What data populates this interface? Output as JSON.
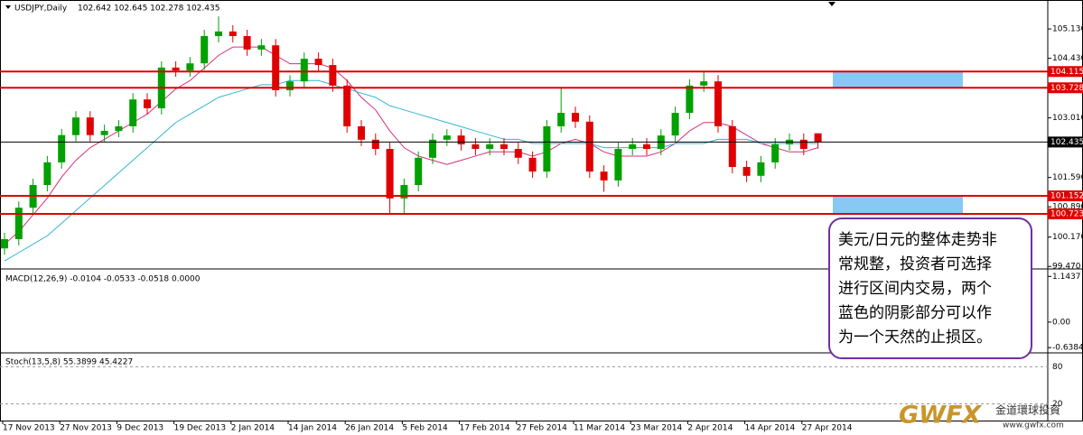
{
  "chart_data": {
    "type": "candlestick",
    "title": "USDJPY,Daily",
    "header_values": "102.642 102.645 102.278 102.435",
    "x_labels": [
      "17 Nov 2013",
      "27 Nov 2013",
      "9 Dec 2013",
      "19 Dec 2013",
      "2 Jan 2014",
      "14 Jan 2014",
      "26 Jan 2014",
      "5 Feb 2014",
      "17 Feb 2014",
      "27 Feb 2014",
      "11 Mar 2014",
      "23 Mar 2014",
      "2 Apr 2014",
      "14 Apr 2014",
      "27 Apr 2014"
    ],
    "open": [
      99.9,
      100.12,
      100.87,
      101.41,
      101.95,
      102.6,
      103.02,
      102.6,
      102.7,
      102.81,
      103.45,
      103.24,
      104.21,
      104.14,
      104.31,
      104.96,
      105.07,
      104.96,
      104.64,
      104.74,
      103.67,
      103.88,
      104.42,
      104.27,
      103.78,
      102.81,
      102.49,
      102.27,
      101.09,
      101.41,
      102.06,
      102.49,
      102.59,
      102.38,
      102.27,
      102.38,
      102.27,
      102.06,
      101.73,
      102.81,
      103.13,
      102.92,
      101.73,
      101.52,
      102.27,
      102.38,
      102.27,
      102.59,
      103.13,
      103.78,
      103.88,
      102.81,
      101.84,
      101.63,
      101.95,
      102.38,
      102.49,
      102.642
    ],
    "high": [
      100.27,
      101.02,
      101.56,
      102.1,
      102.75,
      103.17,
      103.17,
      102.85,
      102.96,
      103.6,
      103.6,
      104.36,
      104.36,
      104.46,
      105.11,
      105.43,
      105.22,
      105.11,
      104.89,
      104.89,
      104.03,
      104.57,
      104.57,
      104.42,
      103.93,
      102.96,
      102.64,
      102.42,
      101.56,
      102.21,
      102.64,
      102.74,
      102.74,
      102.53,
      102.53,
      102.53,
      102.42,
      102.21,
      102.96,
      103.73,
      103.28,
      103.07,
      101.88,
      102.42,
      102.53,
      102.53,
      102.74,
      103.28,
      103.93,
      104.11,
      104.03,
      102.96,
      101.99,
      102.1,
      102.53,
      102.64,
      102.64,
      102.645
    ],
    "low": [
      99.75,
      99.97,
      100.72,
      101.26,
      101.8,
      102.45,
      102.45,
      102.45,
      102.55,
      102.66,
      103.09,
      103.09,
      103.99,
      103.99,
      104.16,
      104.81,
      104.81,
      104.49,
      104.49,
      103.52,
      103.52,
      103.73,
      104.12,
      103.63,
      102.66,
      102.34,
      102.12,
      100.72,
      100.72,
      101.26,
      101.91,
      102.34,
      102.23,
      102.12,
      102.12,
      102.12,
      101.91,
      101.58,
      101.58,
      102.66,
      102.77,
      101.58,
      101.25,
      101.37,
      102.12,
      102.12,
      102.12,
      102.44,
      102.98,
      103.63,
      102.66,
      101.69,
      101.48,
      101.48,
      101.8,
      102.23,
      102.12,
      102.278
    ],
    "close": [
      100.12,
      100.87,
      101.41,
      101.95,
      102.6,
      103.02,
      102.6,
      102.7,
      102.81,
      103.45,
      103.24,
      104.21,
      104.14,
      104.31,
      104.96,
      105.07,
      104.96,
      104.64,
      104.74,
      103.67,
      103.88,
      104.42,
      104.27,
      103.78,
      102.81,
      102.49,
      102.27,
      101.09,
      101.41,
      102.06,
      102.49,
      102.59,
      102.38,
      102.27,
      102.38,
      102.27,
      102.06,
      101.73,
      102.81,
      103.13,
      102.92,
      101.73,
      101.52,
      102.27,
      102.38,
      102.27,
      102.59,
      103.13,
      103.78,
      103.88,
      102.81,
      101.84,
      101.63,
      101.95,
      102.38,
      102.49,
      102.27,
      102.435
    ],
    "up_color": "#00a000",
    "down_color": "#e00000",
    "ma": [
      {
        "color": "#d6307a",
        "values": [
          100.0,
          100.3,
          100.7,
          101.1,
          101.6,
          102.0,
          102.3,
          102.5,
          102.7,
          102.9,
          103.1,
          103.4,
          103.7,
          103.9,
          104.2,
          104.5,
          104.7,
          104.7,
          104.7,
          104.5,
          104.3,
          104.3,
          104.3,
          104.2,
          103.9,
          103.5,
          103.2,
          102.7,
          102.3,
          102.1,
          102.0,
          101.9,
          102.0,
          102.1,
          102.2,
          102.2,
          102.2,
          102.1,
          102.2,
          102.4,
          102.5,
          102.4,
          102.2,
          102.1,
          102.1,
          102.1,
          102.2,
          102.4,
          102.7,
          102.9,
          102.9,
          102.8,
          102.6,
          102.4,
          102.3,
          102.2,
          102.2,
          102.3
        ]
      },
      {
        "color": "#33b5d6",
        "values": [
          99.6,
          99.8,
          100.0,
          100.2,
          100.5,
          100.8,
          101.1,
          101.4,
          101.7,
          102.0,
          102.3,
          102.6,
          102.9,
          103.1,
          103.3,
          103.5,
          103.6,
          103.7,
          103.8,
          103.8,
          103.9,
          103.9,
          103.9,
          103.8,
          103.7,
          103.6,
          103.5,
          103.3,
          103.2,
          103.1,
          103.0,
          102.9,
          102.8,
          102.7,
          102.6,
          102.5,
          102.5,
          102.4,
          102.4,
          102.4,
          102.4,
          102.4,
          102.3,
          102.3,
          102.3,
          102.3,
          102.3,
          102.4,
          102.4,
          102.4,
          102.5,
          102.5,
          102.5,
          102.4,
          102.4,
          102.4,
          102.4,
          102.4
        ]
      }
    ],
    "ylim": [
      99.41,
      105.82
    ],
    "yticks": [
      {
        "value": 105.13,
        "label": "105.130"
      },
      {
        "value": 104.43,
        "label": "104.430"
      },
      {
        "value": 103.01,
        "label": "103.010"
      },
      {
        "value": 101.59,
        "label": "101.590"
      },
      {
        "value": 100.89,
        "label": "100.890"
      },
      {
        "value": 100.17,
        "label": "100.170"
      },
      {
        "value": 99.47,
        "label": "99.470"
      }
    ],
    "levels": [
      {
        "value": 104.115,
        "label": "104.115",
        "color": "#e00000"
      },
      {
        "value": 103.728,
        "label": "103.728",
        "color": "#e00000"
      },
      {
        "value": 102.435,
        "label": "102.435",
        "color": "#000000"
      },
      {
        "value": 101.152,
        "label": "101.152",
        "color": "#e00000"
      },
      {
        "value": 100.723,
        "label": "100.723",
        "color": "#e00000"
      }
    ],
    "zone_color": "#87c8f5",
    "macd": {
      "label": "MACD(12,26,9) -0.0104 -0.0533 -0.0518 0.0000",
      "ylim": [
        -0.77,
        1.33
      ],
      "yticks": [
        1.1437,
        {
          "value": 0,
          "label": "0.00"
        },
        -0.6384
      ]
    },
    "stoch": {
      "label": "Stoch(13,5,8) 55.3899 45.4227",
      "ylim": [
        -7,
        102.5
      ],
      "yticks": [
        80,
        20
      ]
    },
    "annotation": [
      "美元/日元的整体走势非",
      "常规整，投资者可选择",
      "进行区间内交易，两个",
      "蓝色的阴影部分可以作",
      "为一个天然的止损区。"
    ],
    "watermark": {
      "logo": "GWFX",
      "name": "金道環球投資",
      "url": "www.gwfx.com"
    }
  }
}
